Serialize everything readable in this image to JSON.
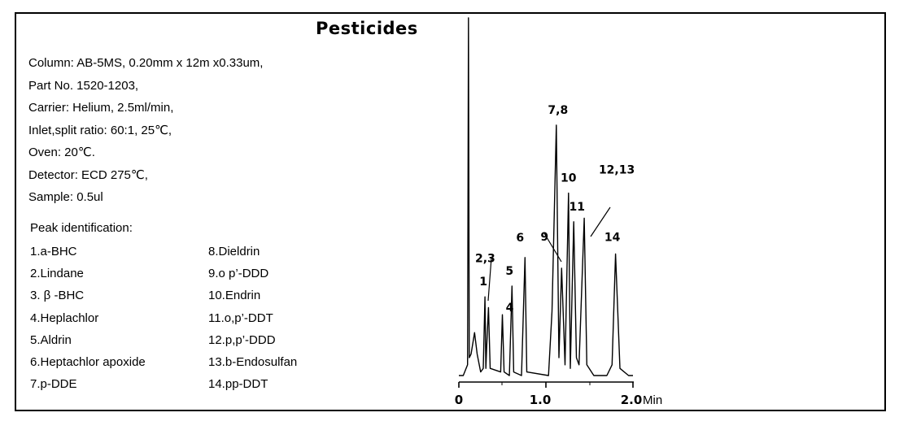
{
  "title": "Pesticides",
  "conditions": [
    "Column: AB-5MS, 0.20mm x 12m x0.33um,",
    "Part No.  1520-1203,",
    "Carrier: Helium, 2.5ml/min,",
    "Inlet,split ratio: 60:1, 25℃,",
    "Oven: 20℃.",
    "Detector: ECD 275℃,",
    "Sample: 0.5ul"
  ],
  "peak_heading": "Peak identification:",
  "peaks_col1": [
    "1.a-BHC",
    "2.Lindane",
    "3. β -BHC",
    "4.Heplachlor",
    "5.Aldrin",
    "6.Heptachlor apoxide",
    "7.p-DDE"
  ],
  "peaks_col2": [
    "8.Dieldrin",
    "9.o p’-DDD",
    "10.Endrin",
    "11.o,p’-DDT",
    "12.p,p’-DDD",
    "13.b-Endosulfan",
    "14.pp-DDT"
  ],
  "chart_data": {
    "type": "line",
    "x_unit": "Min",
    "xlim": [
      0,
      2.0
    ],
    "x_ticks": [
      "0",
      "1.0",
      "2.0"
    ],
    "points": [
      [
        0.0,
        0.0
      ],
      [
        0.05,
        0.0
      ],
      [
        0.1,
        0.03
      ],
      [
        0.11,
        1.0
      ],
      [
        0.12,
        0.05
      ],
      [
        0.14,
        0.06
      ],
      [
        0.18,
        0.12
      ],
      [
        0.21,
        0.06
      ],
      [
        0.25,
        0.01
      ],
      [
        0.28,
        0.02
      ],
      [
        0.3,
        0.22
      ],
      [
        0.31,
        0.02
      ],
      [
        0.32,
        0.08
      ],
      [
        0.34,
        0.19
      ],
      [
        0.36,
        0.02
      ],
      [
        0.48,
        0.01
      ],
      [
        0.5,
        0.17
      ],
      [
        0.52,
        0.01
      ],
      [
        0.58,
        0.0
      ],
      [
        0.61,
        0.25
      ],
      [
        0.63,
        0.01
      ],
      [
        0.72,
        0.0
      ],
      [
        0.76,
        0.33
      ],
      [
        0.78,
        0.01
      ],
      [
        1.03,
        0.0
      ],
      [
        1.07,
        0.18
      ],
      [
        1.12,
        0.7
      ],
      [
        1.15,
        0.05
      ],
      [
        1.18,
        0.3
      ],
      [
        1.22,
        0.03
      ],
      [
        1.26,
        0.51
      ],
      [
        1.28,
        0.02
      ],
      [
        1.32,
        0.43
      ],
      [
        1.35,
        0.05
      ],
      [
        1.38,
        0.03
      ],
      [
        1.44,
        0.44
      ],
      [
        1.47,
        0.03
      ],
      [
        1.55,
        0.0
      ],
      [
        1.7,
        0.0
      ],
      [
        1.76,
        0.03
      ],
      [
        1.8,
        0.34
      ],
      [
        1.85,
        0.02
      ],
      [
        1.95,
        0.0
      ],
      [
        2.0,
        0.0
      ]
    ],
    "peak_labels": [
      {
        "text": "1",
        "x": 0.3
      },
      {
        "text": "2,3",
        "x": 0.34
      },
      {
        "text": "4",
        "x": 0.5
      },
      {
        "text": "5",
        "x": 0.61
      },
      {
        "text": "6",
        "x": 0.76
      },
      {
        "text": "7,8",
        "x": 1.12
      },
      {
        "text": "9",
        "x": 1.18
      },
      {
        "text": "10",
        "x": 1.26
      },
      {
        "text": "11",
        "x": 1.32
      },
      {
        "text": "12,13",
        "x": 1.44
      },
      {
        "text": "14",
        "x": 1.8
      }
    ]
  }
}
